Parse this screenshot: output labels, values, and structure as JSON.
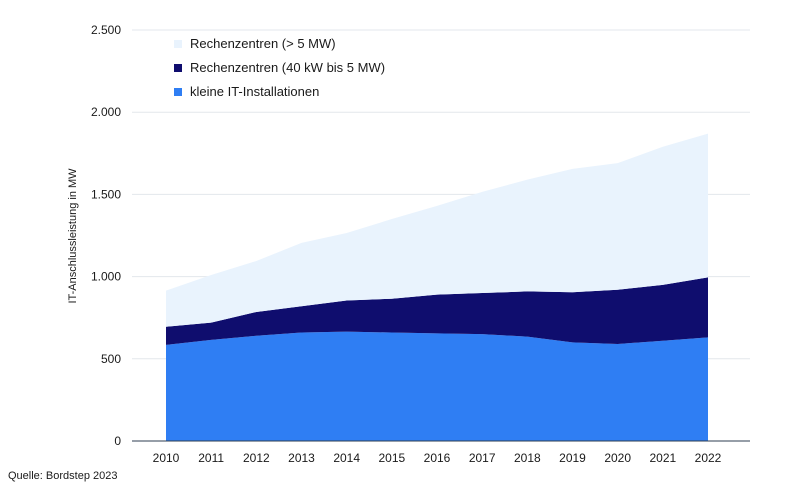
{
  "chart_data": {
    "type": "area",
    "stacked": true,
    "title": "",
    "xlabel": "",
    "ylabel": "IT-Anschlussleistung in MW",
    "ylim": [
      0,
      2500
    ],
    "yticks": [
      0,
      500,
      1000,
      1500,
      2000,
      2500
    ],
    "ytick_labels": [
      "0",
      "500",
      "1.000",
      "1.500",
      "2.000",
      "2.500"
    ],
    "categories": [
      "2010",
      "2011",
      "2012",
      "2013",
      "2014",
      "2015",
      "2016",
      "2017",
      "2018",
      "2019",
      "2020",
      "2021",
      "2022"
    ],
    "grid": "horizontal",
    "legend_position": "top-left",
    "series": [
      {
        "name": "kleine IT-Installationen",
        "color": "#2f7ef3",
        "values": [
          585,
          615,
          640,
          660,
          665,
          660,
          655,
          650,
          635,
          600,
          590,
          610,
          630
        ]
      },
      {
        "name": "Rechenzentren (40 kW bis 5 MW)",
        "color": "#0f0d6e",
        "values": [
          110,
          105,
          145,
          160,
          190,
          205,
          235,
          250,
          275,
          305,
          330,
          340,
          365
        ]
      },
      {
        "name": "Rechenzentren (> 5 MW)",
        "color": "#e9f3fd",
        "values": [
          220,
          290,
          310,
          385,
          410,
          485,
          540,
          615,
          680,
          750,
          770,
          840,
          875
        ]
      }
    ],
    "legend": [
      {
        "label": "Rechenzentren (> 5 MW)",
        "color": "#e9f3fd"
      },
      {
        "label": "Rechenzentren (40 kW bis 5 MW)",
        "color": "#0f0d6e"
      },
      {
        "label": "kleine IT-Installationen",
        "color": "#2f7ef3"
      }
    ]
  },
  "source": "Quelle: Bordstep 2023"
}
